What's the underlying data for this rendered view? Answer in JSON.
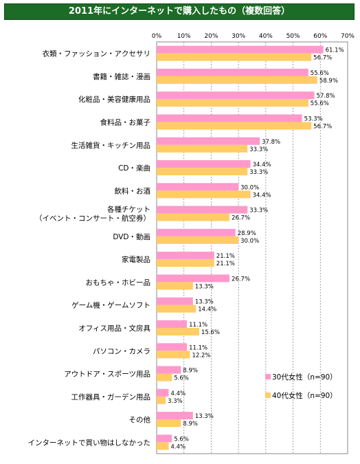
{
  "chart_data": {
    "type": "bar",
    "orientation": "horizontal",
    "title": "2011年にインターネットで購入したもの（複数回答）",
    "xlim": [
      0,
      70
    ],
    "ticks": [
      "0%",
      "10%",
      "20%",
      "30%",
      "40%",
      "50%",
      "60%",
      "70%"
    ],
    "grid": true,
    "legend_position": "bottom-right",
    "categories": [
      "衣類・ファッション・アクセサリ",
      "書籍・雑誌・漫画",
      "化粧品・美容健康用品",
      "食料品・お菓子",
      "生活雑貨・キッチン用品",
      "CD・楽曲",
      "飲料・お酒",
      "各種チケット\n（イベント・コンサート・航空券）",
      "DVD・動画",
      "家電製品",
      "おもちゃ・ホビー品",
      "ゲーム機・ゲームソフト",
      "オフィス用品・文房具",
      "パソコン・カメラ",
      "アウトドア・スポーツ用品",
      "工作器具・ガーデン用品",
      "その他",
      "インターネットで買い物はしなかった"
    ],
    "series": [
      {
        "name": "30代女性（n=90）",
        "color": "#ff99cc",
        "values": [
          61.1,
          55.6,
          57.8,
          53.3,
          37.8,
          34.4,
          30.0,
          33.3,
          28.9,
          21.1,
          26.7,
          13.3,
          11.1,
          11.1,
          8.9,
          4.4,
          13.3,
          5.6
        ],
        "labels": [
          "61.1%",
          "55.6%",
          "57.8%",
          "53.3%",
          "37.8%",
          "34.4%",
          "30.0%",
          "33.3%",
          "28.9%",
          "21.1%",
          "26.7%",
          "13.3%",
          "11.1%",
          "11.1%",
          "8.9%",
          "4.4%",
          "13.3%",
          "5.6%"
        ]
      },
      {
        "name": "40代女性（n=90）",
        "color": "#ffcc66",
        "values": [
          56.7,
          58.9,
          55.6,
          56.7,
          33.3,
          33.3,
          34.4,
          26.7,
          30.0,
          21.1,
          13.3,
          14.4,
          15.6,
          12.2,
          5.6,
          3.3,
          8.9,
          4.4
        ],
        "labels": [
          "56.7%",
          "58.9%",
          "55.6%",
          "56.7%",
          "33.3%",
          "33.3%",
          "34.4%",
          "26.7%",
          "30.0%",
          "21.1%",
          "13.3%",
          "14.4%",
          "15.6%",
          "12.2%",
          "5.6%",
          "3.3%",
          "8.9%",
          "4.4%"
        ]
      }
    ]
  }
}
